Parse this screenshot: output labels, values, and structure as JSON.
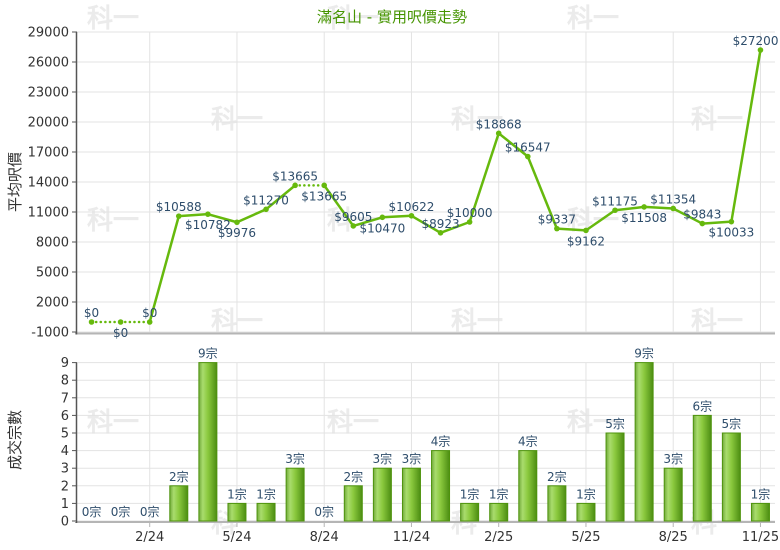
{
  "title": "滿名山 - 實用呎價走勢",
  "watermark": {
    "text": "科一"
  },
  "colors": {
    "title_green": "#459400",
    "line_green": "#66b90d",
    "bar_border_green": "#4e930d",
    "bar_gradient": [
      "#72aa3c",
      "#a9dc6d",
      "#8bc93e",
      "#4c8d12"
    ],
    "data_label_navy": "#2e4d6b",
    "axis_text": "#333333",
    "grid_line": "#e3e3e3",
    "axis_dark": "#555555",
    "axis_gray": "#b5b5b5",
    "watermark_gray": "#ebebeb"
  },
  "chart_data": [
    {
      "type": "line",
      "title": "滿名山 - 實用呎價走勢",
      "ylabel": "平均呎價",
      "ylim": [
        -1000,
        29000
      ],
      "ytick_labels": [
        "29000",
        "26000",
        "23000",
        "20000",
        "17000",
        "14000",
        "11000",
        "8000",
        "5000",
        "2000",
        "-1000"
      ],
      "n_points": 24,
      "values": [
        0,
        0,
        0,
        10588,
        10782,
        9976,
        11270,
        13665,
        13665,
        9605,
        10470,
        10622,
        8923,
        10000,
        18868,
        16547,
        9337,
        9162,
        11175,
        11508,
        11354,
        9843,
        10033,
        27200
      ],
      "point_labels": [
        "$0",
        "$0",
        "$0",
        "$10588",
        "$10782",
        "$9976",
        "$11270",
        "$13665",
        "$13665",
        "$9605",
        "$10470",
        "$10622",
        "$8923",
        "$10000",
        "$18868",
        "$16547",
        "$9337",
        "$9162",
        "$11175",
        "$11508",
        "$11354",
        "$9843",
        "$10033",
        "$27200"
      ],
      "label_side": [
        "above",
        "below",
        "above",
        "above",
        "below",
        "below",
        "above",
        "above",
        "below",
        "above",
        "below",
        "above",
        "above",
        "above",
        "above",
        "above",
        "above",
        "below",
        "above",
        "below",
        "above",
        "above",
        "below",
        "above"
      ],
      "dotted_into": [
        1,
        2,
        8
      ],
      "x_tick_labels": [
        {
          "index": 2,
          "label": "2/24"
        },
        {
          "index": 5,
          "label": "5/24"
        },
        {
          "index": 8,
          "label": "8/24"
        },
        {
          "index": 11,
          "label": "11/24"
        },
        {
          "index": 14,
          "label": "2/25"
        },
        {
          "index": 17,
          "label": "5/25"
        },
        {
          "index": 20,
          "label": "8/25"
        },
        {
          "index": 23,
          "label": "11/25"
        }
      ],
      "grid": true,
      "legend": "none"
    },
    {
      "type": "bar",
      "ylabel": "成交宗數",
      "ylim": [
        0,
        9
      ],
      "ytick_labels": [
        "9",
        "8",
        "7",
        "6",
        "5",
        "4",
        "3",
        "2",
        "1",
        "0"
      ],
      "n_points": 24,
      "values": [
        0,
        0,
        0,
        2,
        9,
        1,
        1,
        3,
        0,
        2,
        3,
        3,
        4,
        1,
        1,
        4,
        2,
        1,
        5,
        9,
        3,
        6,
        5,
        1
      ],
      "bar_labels": [
        "0宗",
        "0宗",
        "0宗",
        "2宗",
        "9宗",
        "1宗",
        "1宗",
        "3宗",
        "0宗",
        "2宗",
        "3宗",
        "3宗",
        "4宗",
        "1宗",
        "1宗",
        "4宗",
        "2宗",
        "1宗",
        "5宗",
        "9宗",
        "3宗",
        "6宗",
        "5宗",
        "1宗"
      ],
      "x_tick_labels": [
        {
          "index": 2,
          "label": "2/24"
        },
        {
          "index": 5,
          "label": "5/24"
        },
        {
          "index": 8,
          "label": "8/24"
        },
        {
          "index": 11,
          "label": "11/24"
        },
        {
          "index": 14,
          "label": "2/25"
        },
        {
          "index": 17,
          "label": "5/25"
        },
        {
          "index": 20,
          "label": "8/25"
        },
        {
          "index": 23,
          "label": "11/25"
        }
      ],
      "grid": true,
      "legend": "none"
    }
  ]
}
